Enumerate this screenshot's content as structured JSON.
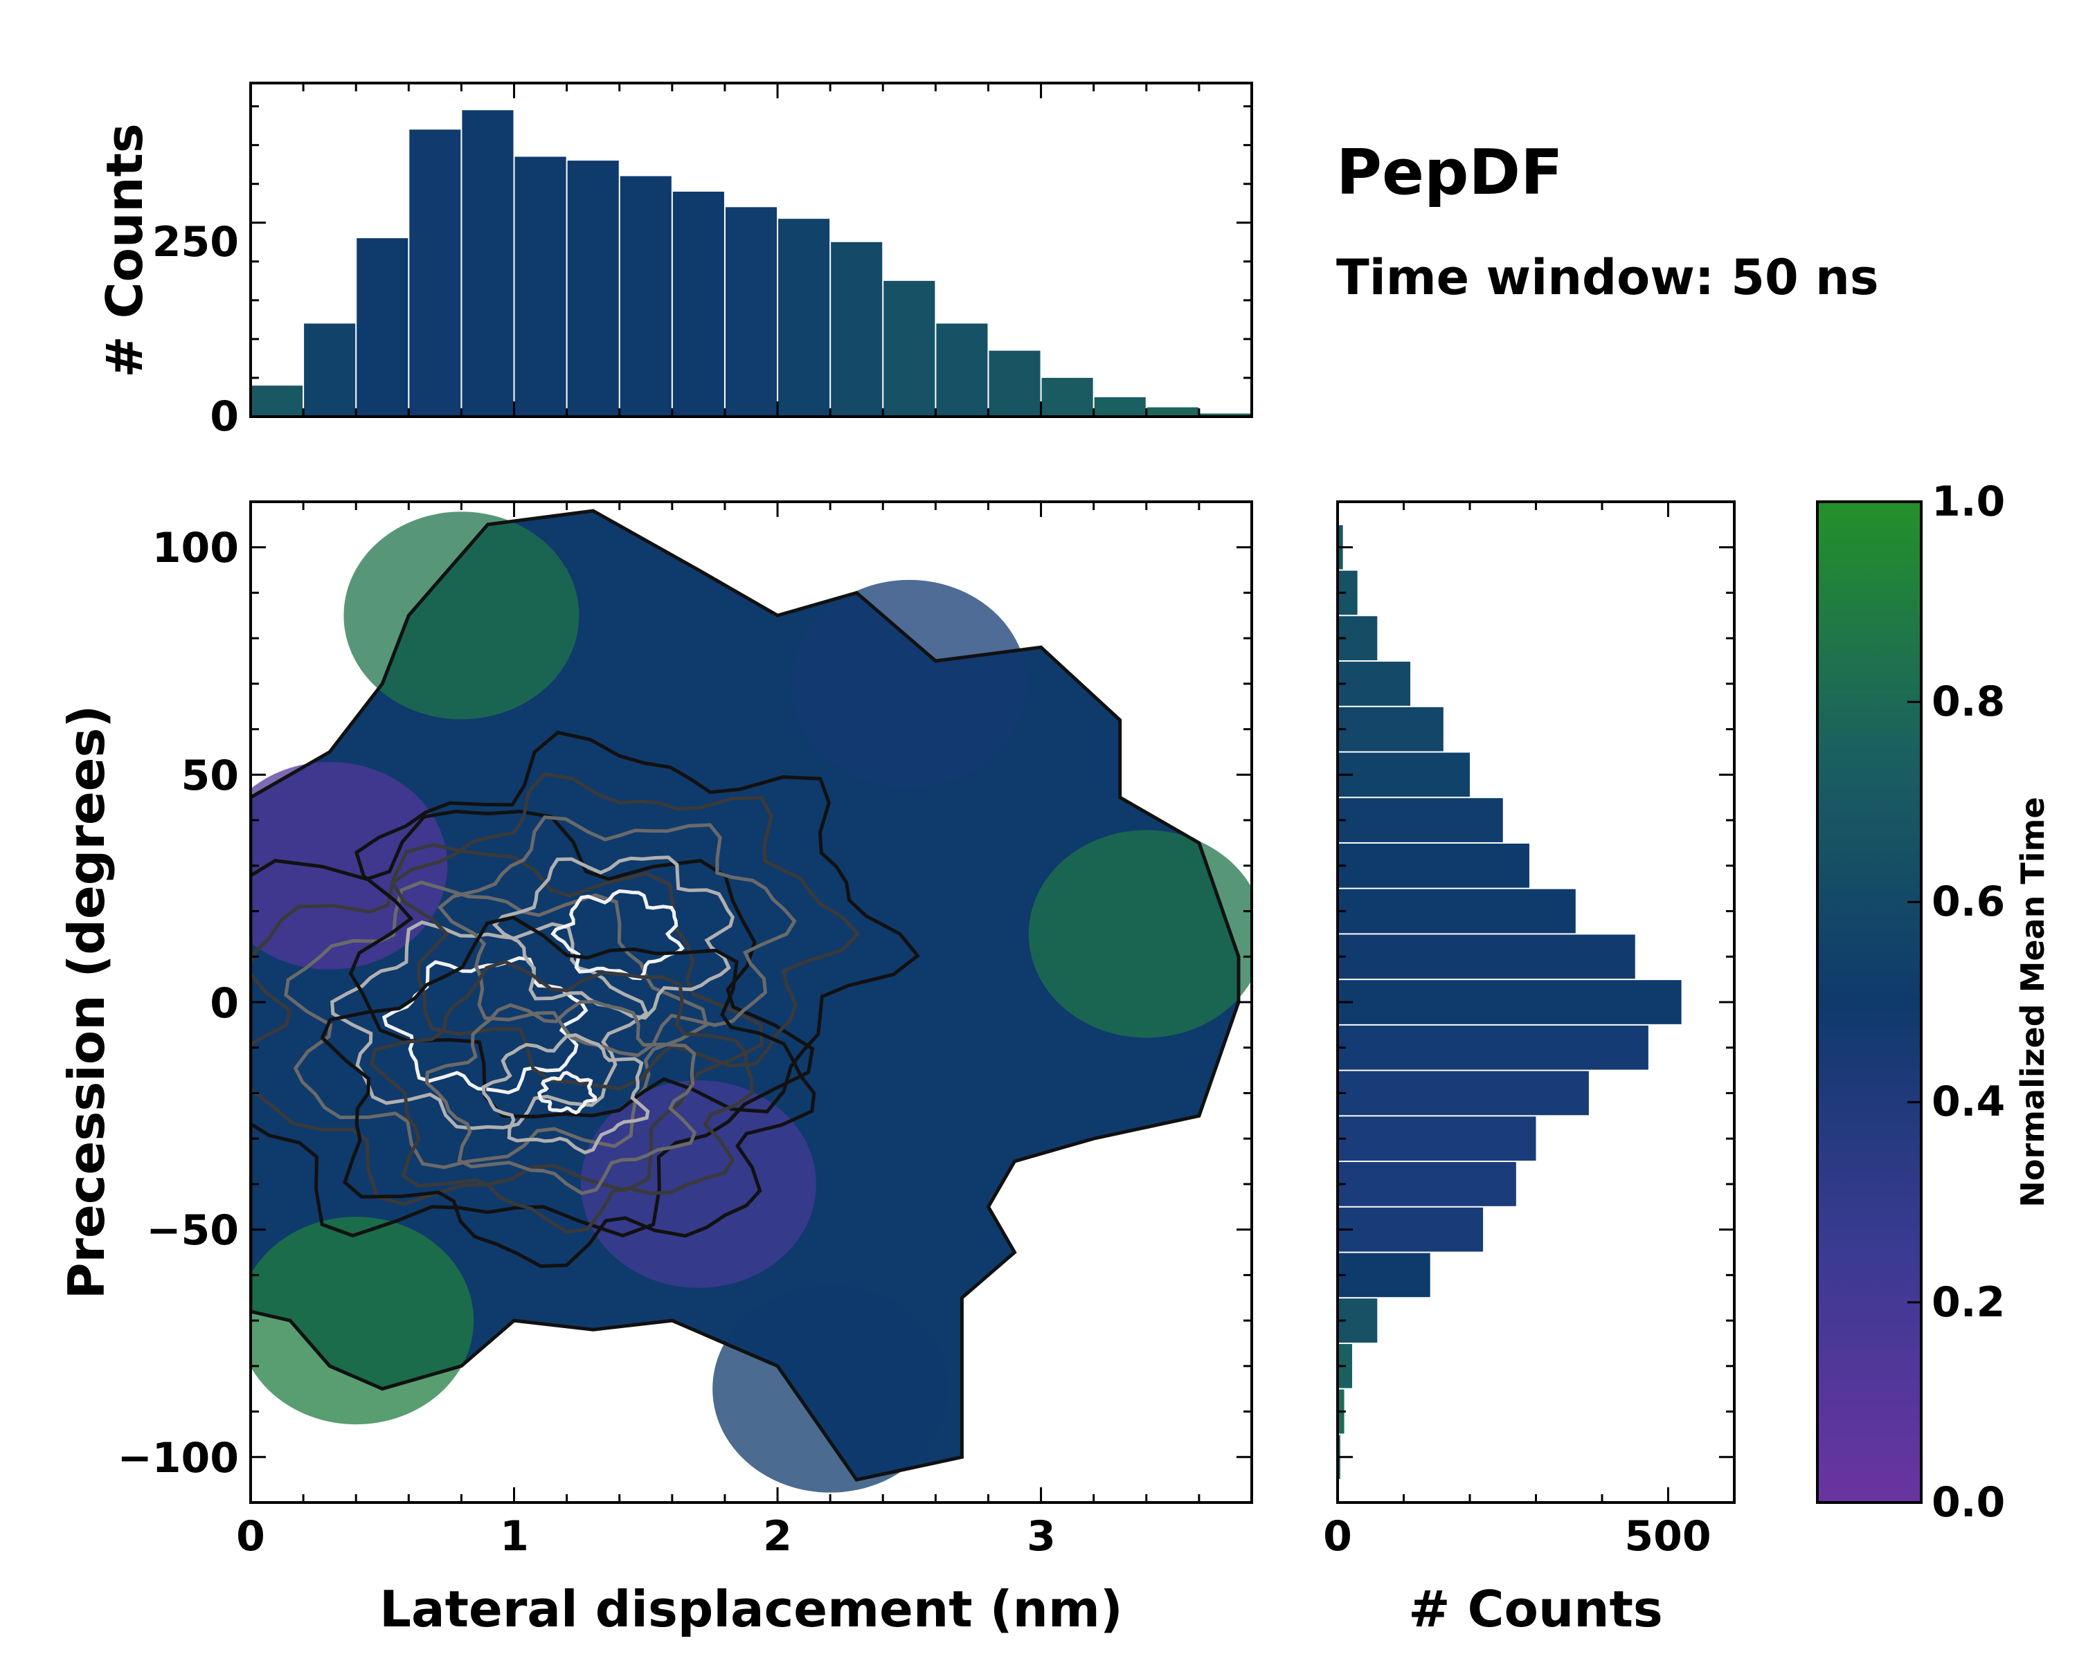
{
  "title": "PepDF",
  "subtitle": "Time window: 50 ns",
  "colors": {
    "purple": "#6a34a0",
    "blue": "#2a3f8e",
    "navy": "#0f3a6c",
    "teal": "#1b6060",
    "green": "#24912a"
  },
  "chart_data": [
    {
      "type": "bar",
      "name": "top-histogram",
      "xlabel": "",
      "ylabel": "# Counts",
      "xlim": [
        0,
        3.8
      ],
      "ylim": [
        0,
        430
      ],
      "yticks": [
        0,
        250
      ],
      "ytick_labels": [
        "0",
        "250"
      ],
      "x_bin_centers": [
        0.1,
        0.3,
        0.5,
        0.7,
        0.9,
        1.1,
        1.3,
        1.5,
        1.7,
        1.9,
        2.1,
        2.3,
        2.5,
        2.7,
        2.9,
        3.1,
        3.3,
        3.5,
        3.7
      ],
      "values": [
        40,
        120,
        230,
        370,
        395,
        335,
        330,
        310,
        290,
        270,
        255,
        225,
        175,
        120,
        85,
        50,
        25,
        12,
        4
      ],
      "mean_time": [
        0.7,
        0.55,
        0.5,
        0.48,
        0.5,
        0.5,
        0.5,
        0.5,
        0.5,
        0.52,
        0.55,
        0.6,
        0.65,
        0.65,
        0.68,
        0.72,
        0.75,
        0.78,
        0.8
      ]
    },
    {
      "type": "heatmap",
      "name": "main-density",
      "xlabel": "Lateral displacement (nm)",
      "ylabel": "Precession (degrees)",
      "xlim": [
        0,
        3.8
      ],
      "ylim": [
        -110,
        110
      ],
      "xticks": [
        0,
        1,
        2,
        3
      ],
      "xtick_labels": [
        "0",
        "1",
        "2",
        "3"
      ],
      "yticks": [
        100,
        50,
        0,
        -50,
        -100
      ],
      "ytick_labels": [
        "100",
        "50",
        "0",
        "−50",
        "−100"
      ],
      "colored_by": "Normalized Mean Time",
      "regions": [
        {
          "label": "purple",
          "x": 0.3,
          "y": 30,
          "value": 0.1
        },
        {
          "label": "green",
          "x": 0.8,
          "y": 85,
          "value": 0.85
        },
        {
          "label": "purple",
          "x": 1.7,
          "y": -40,
          "value": 0.15
        },
        {
          "label": "navy",
          "x": 2.5,
          "y": 70,
          "value": 0.45
        },
        {
          "label": "green",
          "x": 3.4,
          "y": 15,
          "value": 0.85
        },
        {
          "label": "green",
          "x": 0.4,
          "y": -70,
          "value": 0.9
        },
        {
          "label": "navy",
          "x": 2.2,
          "y": -85,
          "value": 0.5
        }
      ],
      "contour_levels": [
        "black",
        "dark-gray",
        "gray",
        "light-gray",
        "white"
      ],
      "contour_centers": [
        {
          "x": 0.9,
          "y": -5
        },
        {
          "x": 1.4,
          "y": 15
        },
        {
          "x": 1.2,
          "y": -20
        }
      ]
    },
    {
      "type": "bar",
      "orientation": "horizontal",
      "name": "right-histogram",
      "xlabel": "# Counts",
      "xlim": [
        0,
        600
      ],
      "xticks": [
        0,
        500
      ],
      "xtick_labels": [
        "0",
        "500"
      ],
      "y_bin_centers": [
        100,
        90,
        80,
        70,
        60,
        50,
        40,
        30,
        20,
        10,
        0,
        -10,
        -20,
        -30,
        -40,
        -50,
        -60,
        -70,
        -80,
        -90,
        -100
      ],
      "values": [
        8,
        30,
        60,
        110,
        160,
        200,
        250,
        290,
        360,
        450,
        520,
        470,
        380,
        300,
        270,
        220,
        140,
        60,
        22,
        10,
        4
      ],
      "mean_time": [
        0.7,
        0.65,
        0.62,
        0.6,
        0.58,
        0.55,
        0.52,
        0.5,
        0.5,
        0.48,
        0.5,
        0.45,
        0.42,
        0.4,
        0.4,
        0.42,
        0.5,
        0.65,
        0.75,
        0.8,
        0.75
      ]
    },
    {
      "type": "colorbar",
      "name": "colorbar",
      "label": "Normalized Mean Time",
      "range": [
        0,
        1
      ],
      "ticks": [
        0,
        0.2,
        0.4,
        0.6,
        0.8,
        1
      ],
      "tick_labels": [
        "0.0",
        "0.2",
        "0.4",
        "0.6",
        "0.8",
        "1.0"
      ]
    }
  ]
}
